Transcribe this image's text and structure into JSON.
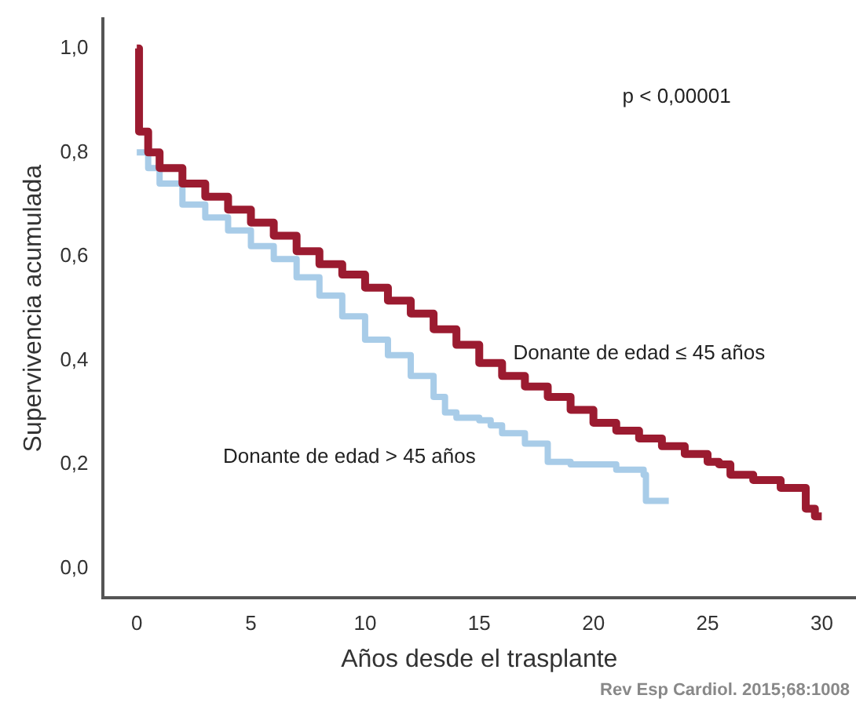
{
  "chart_data": {
    "type": "step",
    "xlabel": "Años desde el trasplante",
    "ylabel": "Supervivencia acumulada",
    "xlim": [
      -1.5,
      31.5
    ],
    "ylim": [
      -0.057,
      1.057
    ],
    "xticks": [
      0,
      5,
      10,
      15,
      20,
      25,
      30
    ],
    "yticks": [
      {
        "value": 0,
        "label": "0,0"
      },
      {
        "value": 0.2,
        "label": "0,2"
      },
      {
        "value": 0.4,
        "label": "0,4"
      },
      {
        "value": 0.6,
        "label": "0,6"
      },
      {
        "value": 0.8,
        "label": "0,8"
      },
      {
        "value": 1,
        "label": "1,0"
      }
    ],
    "grid": false,
    "legend": false,
    "marker": "none",
    "line_style": "solid",
    "annotations": [
      "p < 0,00001",
      "Rev Esp Cardiol. 2015;68:1008"
    ],
    "series": [
      {
        "name": "Donante de edad ≤ 45 años",
        "color": "#9b1b30",
        "x": [
          0,
          0.1,
          0.5,
          1,
          2,
          3,
          4,
          5,
          6,
          7,
          8,
          9,
          10,
          11,
          12,
          13,
          14,
          15,
          16,
          17,
          18,
          19,
          20,
          21,
          22,
          23,
          24,
          25,
          25.5,
          26,
          27,
          28.2,
          29.3,
          29.7,
          30
        ],
        "values": [
          1.0,
          0.84,
          0.8,
          0.77,
          0.74,
          0.715,
          0.69,
          0.665,
          0.64,
          0.61,
          0.585,
          0.565,
          0.54,
          0.515,
          0.49,
          0.46,
          0.43,
          0.395,
          0.37,
          0.35,
          0.33,
          0.305,
          0.28,
          0.265,
          0.25,
          0.235,
          0.22,
          0.205,
          0.2,
          0.18,
          0.17,
          0.155,
          0.115,
          0.1,
          0.1
        ]
      },
      {
        "name": "Donante de edad > 45 años",
        "color": "#a8cce8",
        "x": [
          0,
          0.5,
          1,
          2,
          3,
          4,
          5,
          6,
          7,
          8,
          9,
          10,
          11,
          12,
          13,
          13.5,
          14,
          15,
          15.5,
          16,
          17,
          18,
          19,
          20,
          21,
          22.2,
          22.3,
          23.3
        ],
        "values": [
          0.8,
          0.77,
          0.74,
          0.7,
          0.675,
          0.65,
          0.62,
          0.595,
          0.56,
          0.525,
          0.485,
          0.44,
          0.41,
          0.37,
          0.33,
          0.3,
          0.29,
          0.285,
          0.275,
          0.26,
          0.24,
          0.205,
          0.2,
          0.2,
          0.19,
          0.18,
          0.13,
          0.13
        ]
      }
    ]
  }
}
